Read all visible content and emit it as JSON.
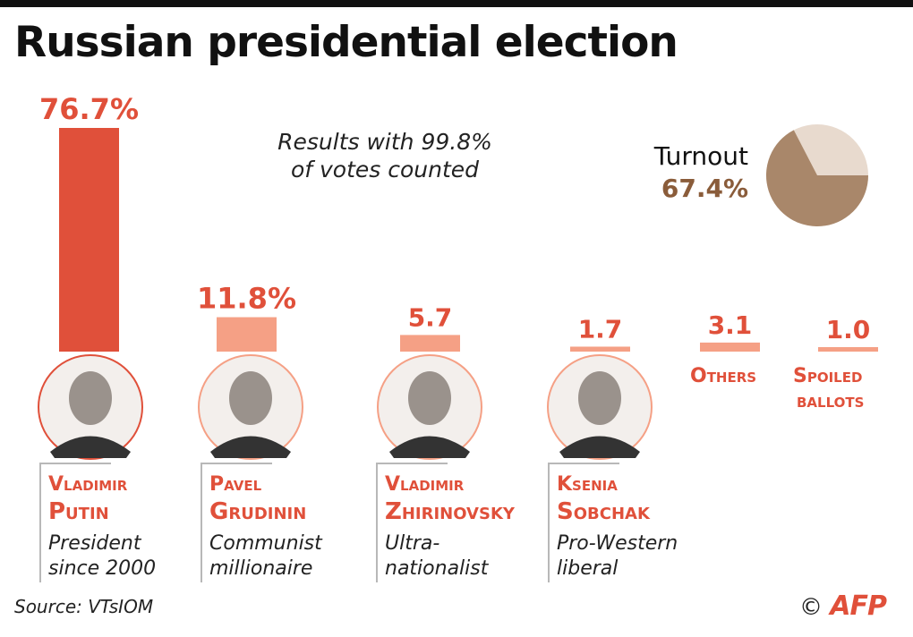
{
  "title": "Russian presidential election",
  "subtitle_lines": [
    "Results with 99.8%",
    "of votes counted"
  ],
  "source": "Source: VTsIOM",
  "credit": {
    "copyright": "©",
    "logo": "AFP"
  },
  "turnout": {
    "label": "Turnout",
    "value_text": "67.4%",
    "value": 67.4,
    "colors": {
      "voted": "#a9876a",
      "not_voted": "#e8dace"
    }
  },
  "chart_data": {
    "type": "bar",
    "categories": [
      "Vladimir Putin",
      "Pavel Grudinin",
      "Vladimir Zhirinovsky",
      "Ksenia Sobchak",
      "Others",
      "Spoiled ballots"
    ],
    "values": [
      76.7,
      11.8,
      5.7,
      1.7,
      3.1,
      1.0
    ],
    "value_labels": [
      "76.7%",
      "11.8%",
      "5.7",
      "1.7",
      "3.1",
      "1.0"
    ],
    "unit": "%",
    "colors": {
      "winner": "#e0503a",
      "others": "#f5a085",
      "label": "#e0503a"
    }
  },
  "candidates": [
    {
      "first": "Vladimir",
      "last": "Putin",
      "desc1": "President",
      "desc2": "since 2000"
    },
    {
      "first": "Pavel",
      "last": "Grudinin",
      "desc1": "Communist",
      "desc2": "millionaire"
    },
    {
      "first": "Vladimir",
      "last": "Zhirinovsky",
      "desc1": "Ultra-",
      "desc2": "nationalist"
    },
    {
      "first": "Ksenia",
      "last": "Sobchak",
      "desc1": "Pro-Western",
      "desc2": "liberal"
    }
  ],
  "others_label": "Others",
  "spoiled_label": [
    "Spoiled",
    "ballots"
  ]
}
